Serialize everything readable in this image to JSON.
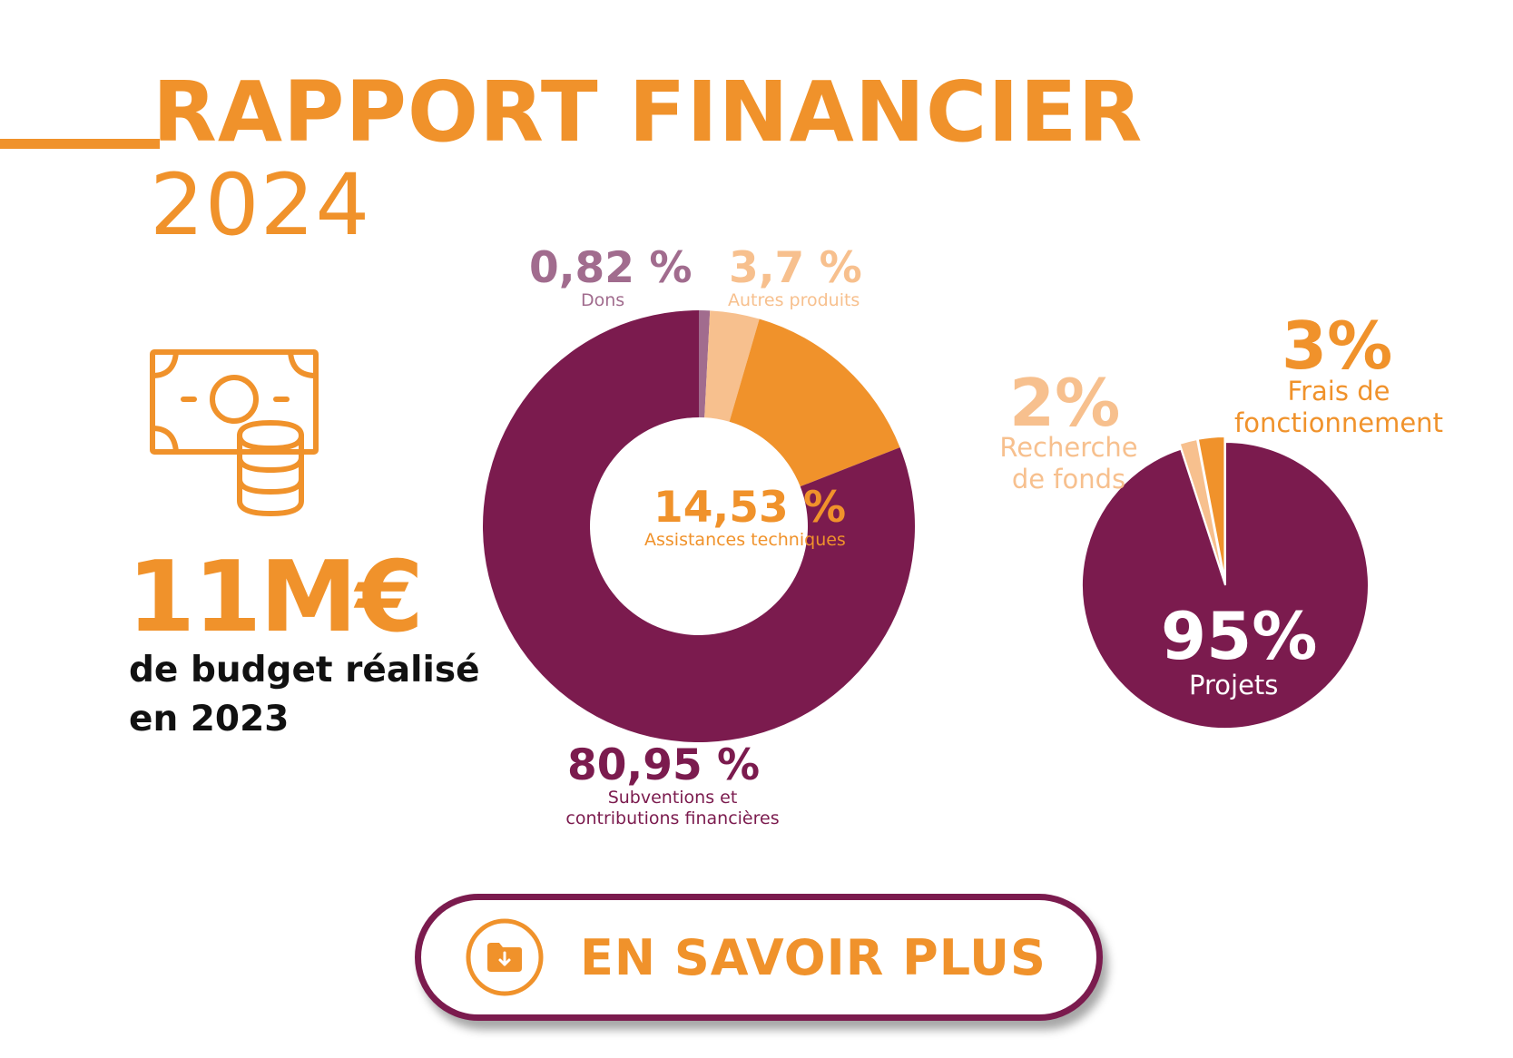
{
  "header": {
    "title": "RAPPORT FINANCIER",
    "year": "2024"
  },
  "colors": {
    "orange": "#F0922B",
    "light_orange": "#F7C08E",
    "plum": "#7B1B4E",
    "mauve": "#A16C8E"
  },
  "icons": {
    "budget": "banknote-with-coins-icon",
    "cta": "folder-download-icon"
  },
  "budget": {
    "amount": "11M€",
    "caption": "de budget réalisé en 2023"
  },
  "chart_data": [
    {
      "type": "pie",
      "variant": "donut",
      "title": "",
      "categories": [
        "Dons",
        "Autres produits",
        "Assistances techniques",
        "Subventions et contributions financières"
      ],
      "values": [
        0.82,
        3.7,
        14.53,
        80.95
      ],
      "value_labels": [
        "0,82 %",
        "3,7 %",
        "14,53 %",
        "80,95 %"
      ],
      "colors": [
        "#A16C8E",
        "#F7C08E",
        "#F0922B",
        "#7B1B4E"
      ]
    },
    {
      "type": "pie",
      "title": "",
      "categories": [
        "Recherche de fonds",
        "Frais de fonctionnement",
        "Projets"
      ],
      "values": [
        2,
        3,
        95
      ],
      "value_labels": [
        "2%",
        "3%",
        "95%"
      ],
      "colors": [
        "#F7C08E",
        "#F0922B",
        "#7B1B4E"
      ]
    }
  ],
  "cta": {
    "label": "EN SAVOIR PLUS"
  }
}
